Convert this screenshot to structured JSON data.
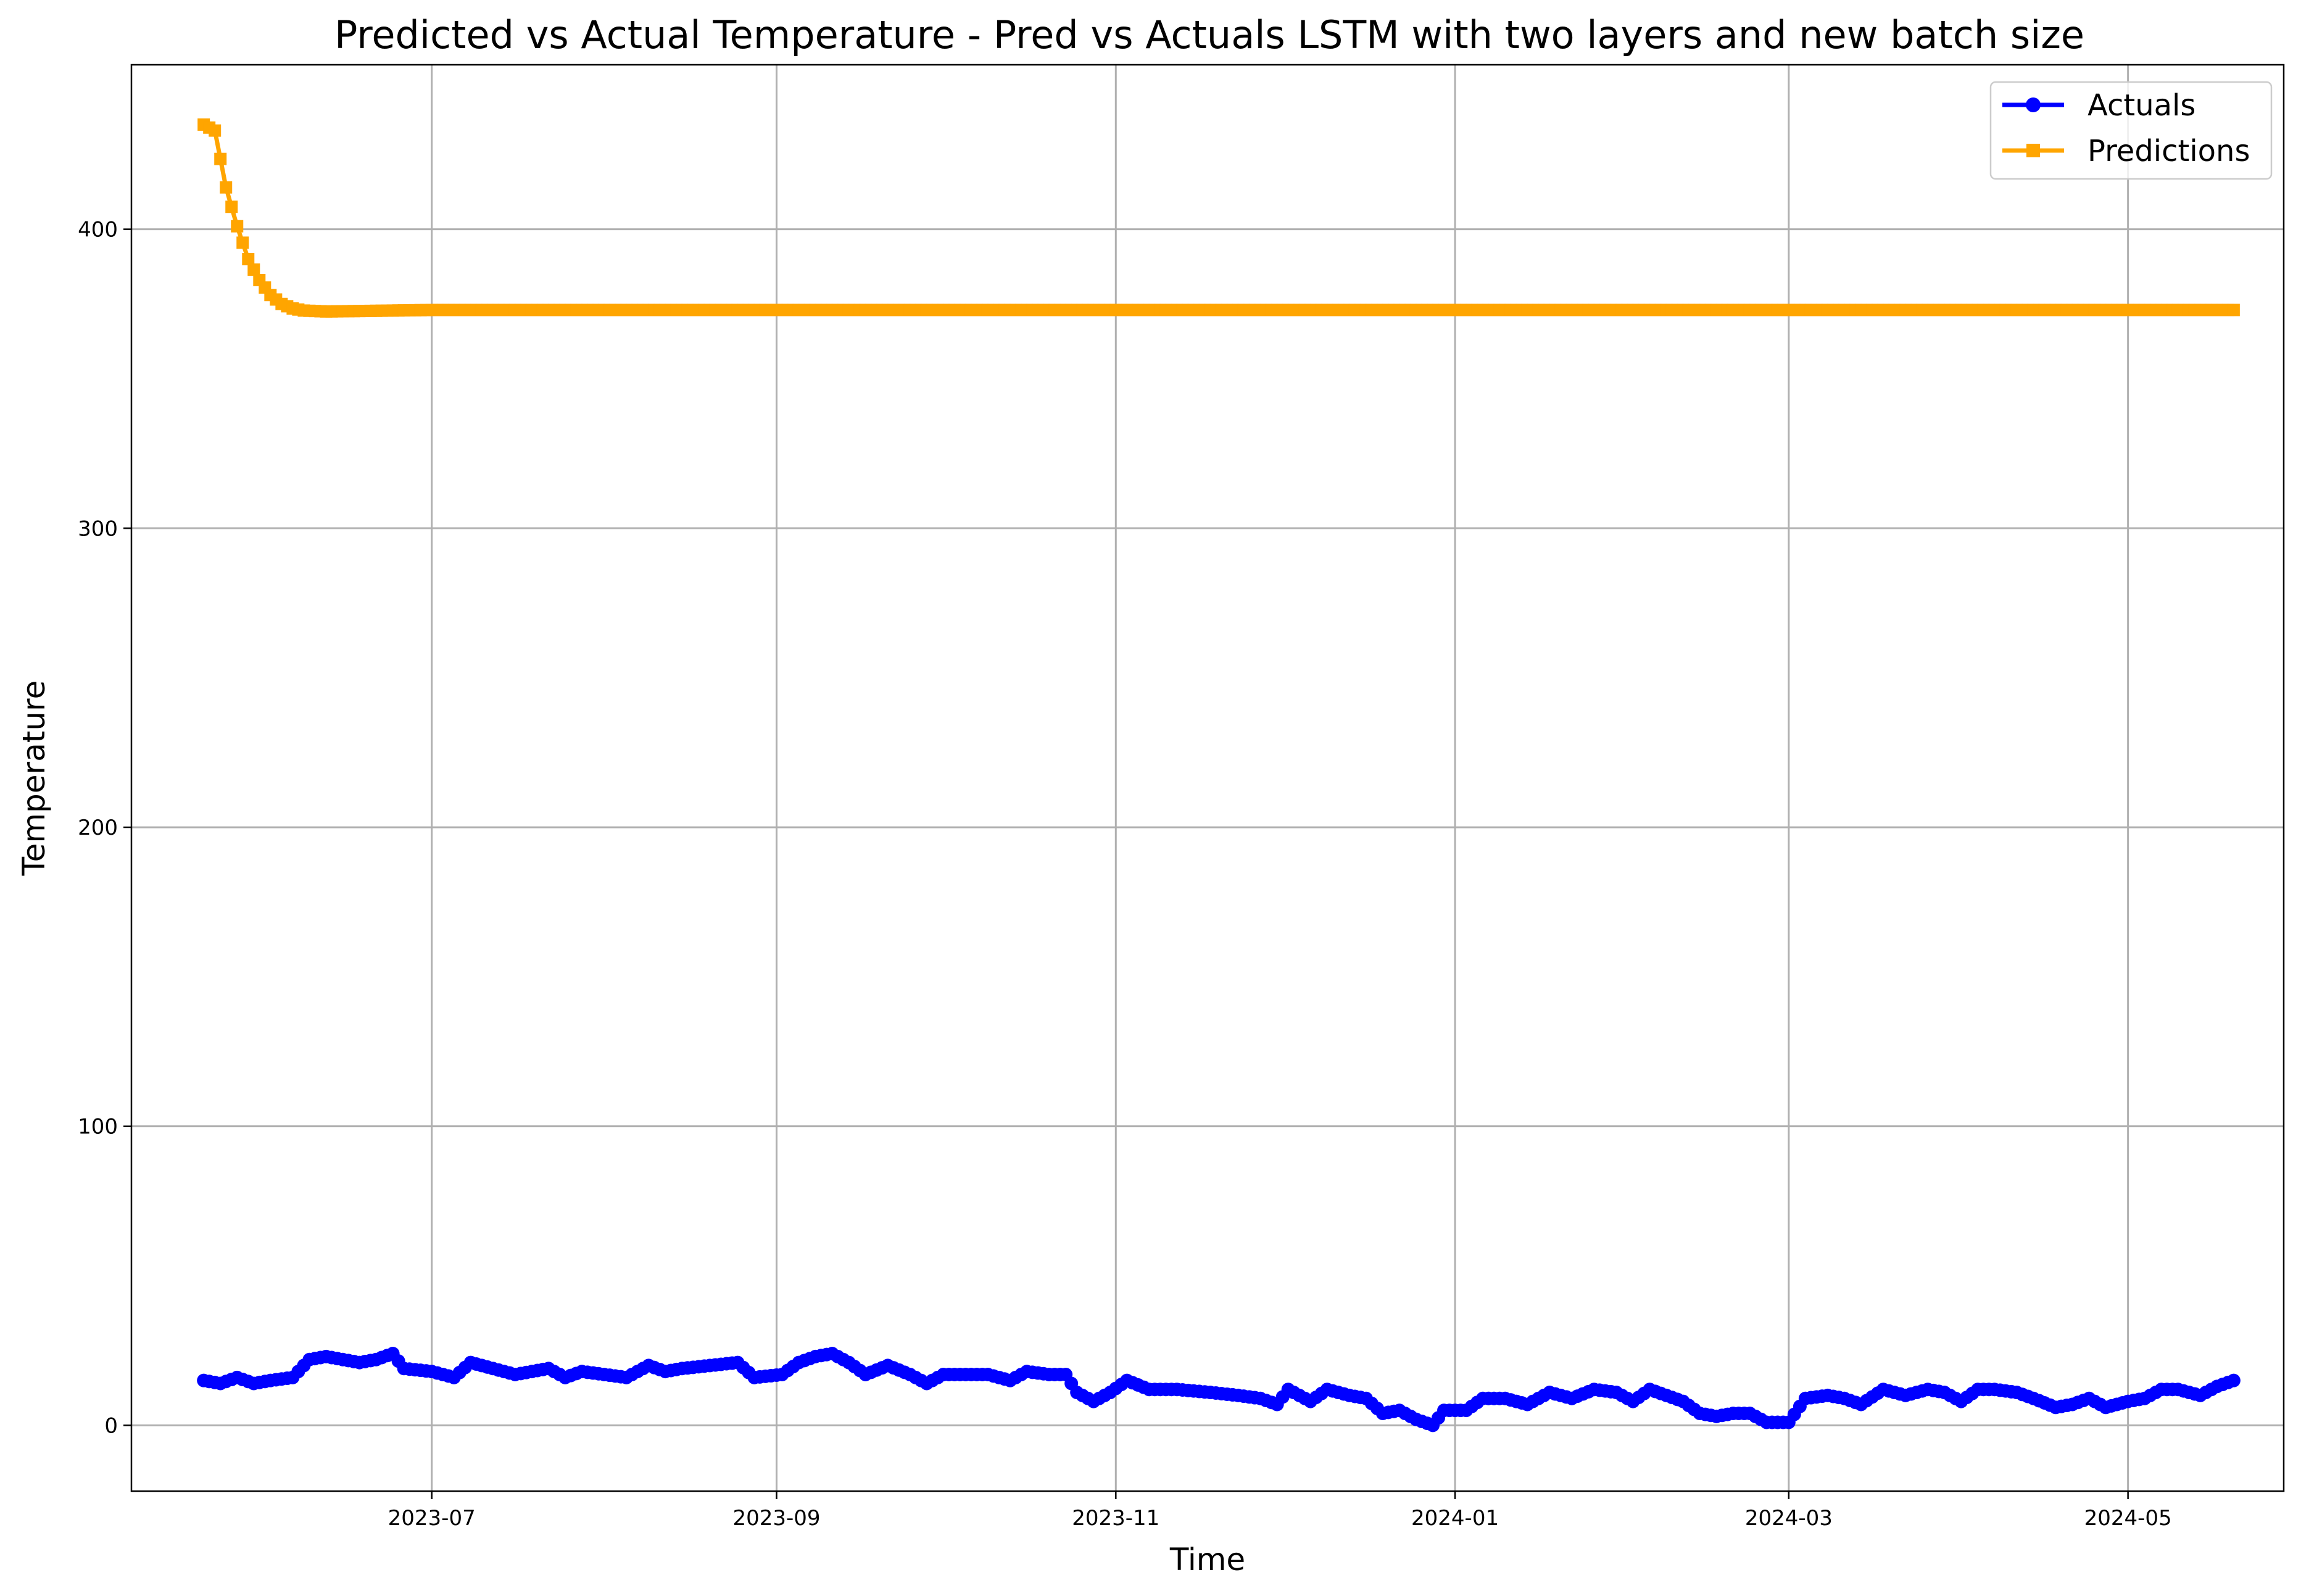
{
  "chart_data": {
    "type": "line",
    "title": "Predicted vs Actual Temperature - Pred vs Actuals LSTM with two layers and new batch size",
    "xlabel": "Time",
    "ylabel": "Temperature",
    "x_type": "date",
    "xlim": [
      "2023-05-08",
      "2024-05-29"
    ],
    "ylim": [
      -22,
      455
    ],
    "x_ticks": [
      "2023-07-01",
      "2023-09-01",
      "2023-11-01",
      "2024-01-01",
      "2024-03-01",
      "2024-05-01"
    ],
    "x_tick_labels": [
      "2023-07",
      "2023-09",
      "2023-11",
      "2024-01",
      "2024-03",
      "2024-05"
    ],
    "y_ticks": [
      0,
      100,
      200,
      300,
      400
    ],
    "y_tick_labels": [
      "0",
      "100",
      "200",
      "300",
      "400"
    ],
    "grid": true,
    "legend_position": "top-right",
    "series": [
      {
        "name": "Actuals",
        "color": "#0000ff",
        "marker": "circle",
        "start_date": "2023-05-21",
        "end_date": "2024-05-20",
        "keypoints": [
          [
            "2023-05-21",
            15
          ],
          [
            "2023-05-24",
            14
          ],
          [
            "2023-05-27",
            16
          ],
          [
            "2023-05-30",
            14
          ],
          [
            "2023-06-02",
            15
          ],
          [
            "2023-06-06",
            16
          ],
          [
            "2023-06-09",
            22
          ],
          [
            "2023-06-12",
            23
          ],
          [
            "2023-06-18",
            21
          ],
          [
            "2023-06-21",
            22
          ],
          [
            "2023-06-24",
            24
          ],
          [
            "2023-06-26",
            19
          ],
          [
            "2023-07-01",
            18
          ],
          [
            "2023-07-05",
            16
          ],
          [
            "2023-07-08",
            21
          ],
          [
            "2023-07-12",
            19
          ],
          [
            "2023-07-16",
            17
          ],
          [
            "2023-07-22",
            19
          ],
          [
            "2023-07-25",
            16
          ],
          [
            "2023-07-28",
            18
          ],
          [
            "2023-08-01",
            17
          ],
          [
            "2023-08-05",
            16
          ],
          [
            "2023-08-09",
            20
          ],
          [
            "2023-08-12",
            18
          ],
          [
            "2023-08-15",
            19
          ],
          [
            "2023-08-20",
            20
          ],
          [
            "2023-08-25",
            21
          ],
          [
            "2023-08-28",
            16
          ],
          [
            "2023-09-02",
            17
          ],
          [
            "2023-09-05",
            21
          ],
          [
            "2023-09-08",
            23
          ],
          [
            "2023-09-11",
            24
          ],
          [
            "2023-09-14",
            21
          ],
          [
            "2023-09-17",
            17
          ],
          [
            "2023-09-21",
            20
          ],
          [
            "2023-09-25",
            17
          ],
          [
            "2023-09-28",
            14
          ],
          [
            "2023-10-01",
            17
          ],
          [
            "2023-10-05",
            17
          ],
          [
            "2023-10-09",
            17
          ],
          [
            "2023-10-13",
            15
          ],
          [
            "2023-10-16",
            18
          ],
          [
            "2023-10-20",
            17
          ],
          [
            "2023-10-23",
            17
          ],
          [
            "2023-10-25",
            11
          ],
          [
            "2023-10-28",
            8
          ],
          [
            "2023-10-31",
            11
          ],
          [
            "2023-11-03",
            15
          ],
          [
            "2023-11-07",
            12
          ],
          [
            "2023-11-12",
            12
          ],
          [
            "2023-11-18",
            11
          ],
          [
            "2023-11-23",
            10
          ],
          [
            "2023-11-27",
            9
          ],
          [
            "2023-11-30",
            7
          ],
          [
            "2023-12-02",
            12
          ],
          [
            "2023-12-06",
            8
          ],
          [
            "2023-12-09",
            12
          ],
          [
            "2023-12-13",
            10
          ],
          [
            "2023-12-16",
            9
          ],
          [
            "2023-12-19",
            4
          ],
          [
            "2023-12-22",
            5
          ],
          [
            "2023-12-25",
            2
          ],
          [
            "2023-12-28",
            0
          ],
          [
            "2023-12-30",
            5
          ],
          [
            "2024-01-03",
            5
          ],
          [
            "2024-01-06",
            9
          ],
          [
            "2024-01-10",
            9
          ],
          [
            "2024-01-14",
            7
          ],
          [
            "2024-01-18",
            11
          ],
          [
            "2024-01-22",
            9
          ],
          [
            "2024-01-26",
            12
          ],
          [
            "2024-01-30",
            11
          ],
          [
            "2024-02-02",
            8
          ],
          [
            "2024-02-05",
            12
          ],
          [
            "2024-02-08",
            10
          ],
          [
            "2024-02-11",
            8
          ],
          [
            "2024-02-14",
            4
          ],
          [
            "2024-02-17",
            3
          ],
          [
            "2024-02-20",
            4
          ],
          [
            "2024-02-23",
            4
          ],
          [
            "2024-02-26",
            1
          ],
          [
            "2024-03-01",
            1
          ],
          [
            "2024-03-04",
            9
          ],
          [
            "2024-03-08",
            10
          ],
          [
            "2024-03-11",
            9
          ],
          [
            "2024-03-14",
            7
          ],
          [
            "2024-03-18",
            12
          ],
          [
            "2024-03-22",
            10
          ],
          [
            "2024-03-26",
            12
          ],
          [
            "2024-03-29",
            11
          ],
          [
            "2024-04-01",
            8
          ],
          [
            "2024-04-04",
            12
          ],
          [
            "2024-04-07",
            12
          ],
          [
            "2024-04-11",
            11
          ],
          [
            "2024-04-14",
            9
          ],
          [
            "2024-04-18",
            6
          ],
          [
            "2024-04-21",
            7
          ],
          [
            "2024-04-24",
            9
          ],
          [
            "2024-04-27",
            6
          ],
          [
            "2024-05-01",
            8
          ],
          [
            "2024-05-04",
            9
          ],
          [
            "2024-05-07",
            12
          ],
          [
            "2024-05-10",
            12
          ],
          [
            "2024-05-14",
            10
          ],
          [
            "2024-05-17",
            13
          ],
          [
            "2024-05-20",
            15
          ]
        ]
      },
      {
        "name": "Predictions",
        "color": "#ffa500",
        "marker": "square",
        "start_date": "2023-05-21",
        "end_date": "2024-05-20",
        "keypoints": [
          [
            "2023-05-21",
            435
          ],
          [
            "2023-05-23",
            433
          ],
          [
            "2023-05-25",
            414
          ],
          [
            "2023-05-27",
            401
          ],
          [
            "2023-05-29",
            390
          ],
          [
            "2023-05-31",
            383
          ],
          [
            "2023-06-02",
            378
          ],
          [
            "2023-06-04",
            375
          ],
          [
            "2023-06-06",
            373.5
          ],
          [
            "2023-06-08",
            372.8
          ],
          [
            "2023-06-12",
            372.5
          ],
          [
            "2023-06-20",
            372.7
          ],
          [
            "2023-07-01",
            373
          ],
          [
            "2024-05-20",
            373
          ]
        ]
      }
    ]
  }
}
